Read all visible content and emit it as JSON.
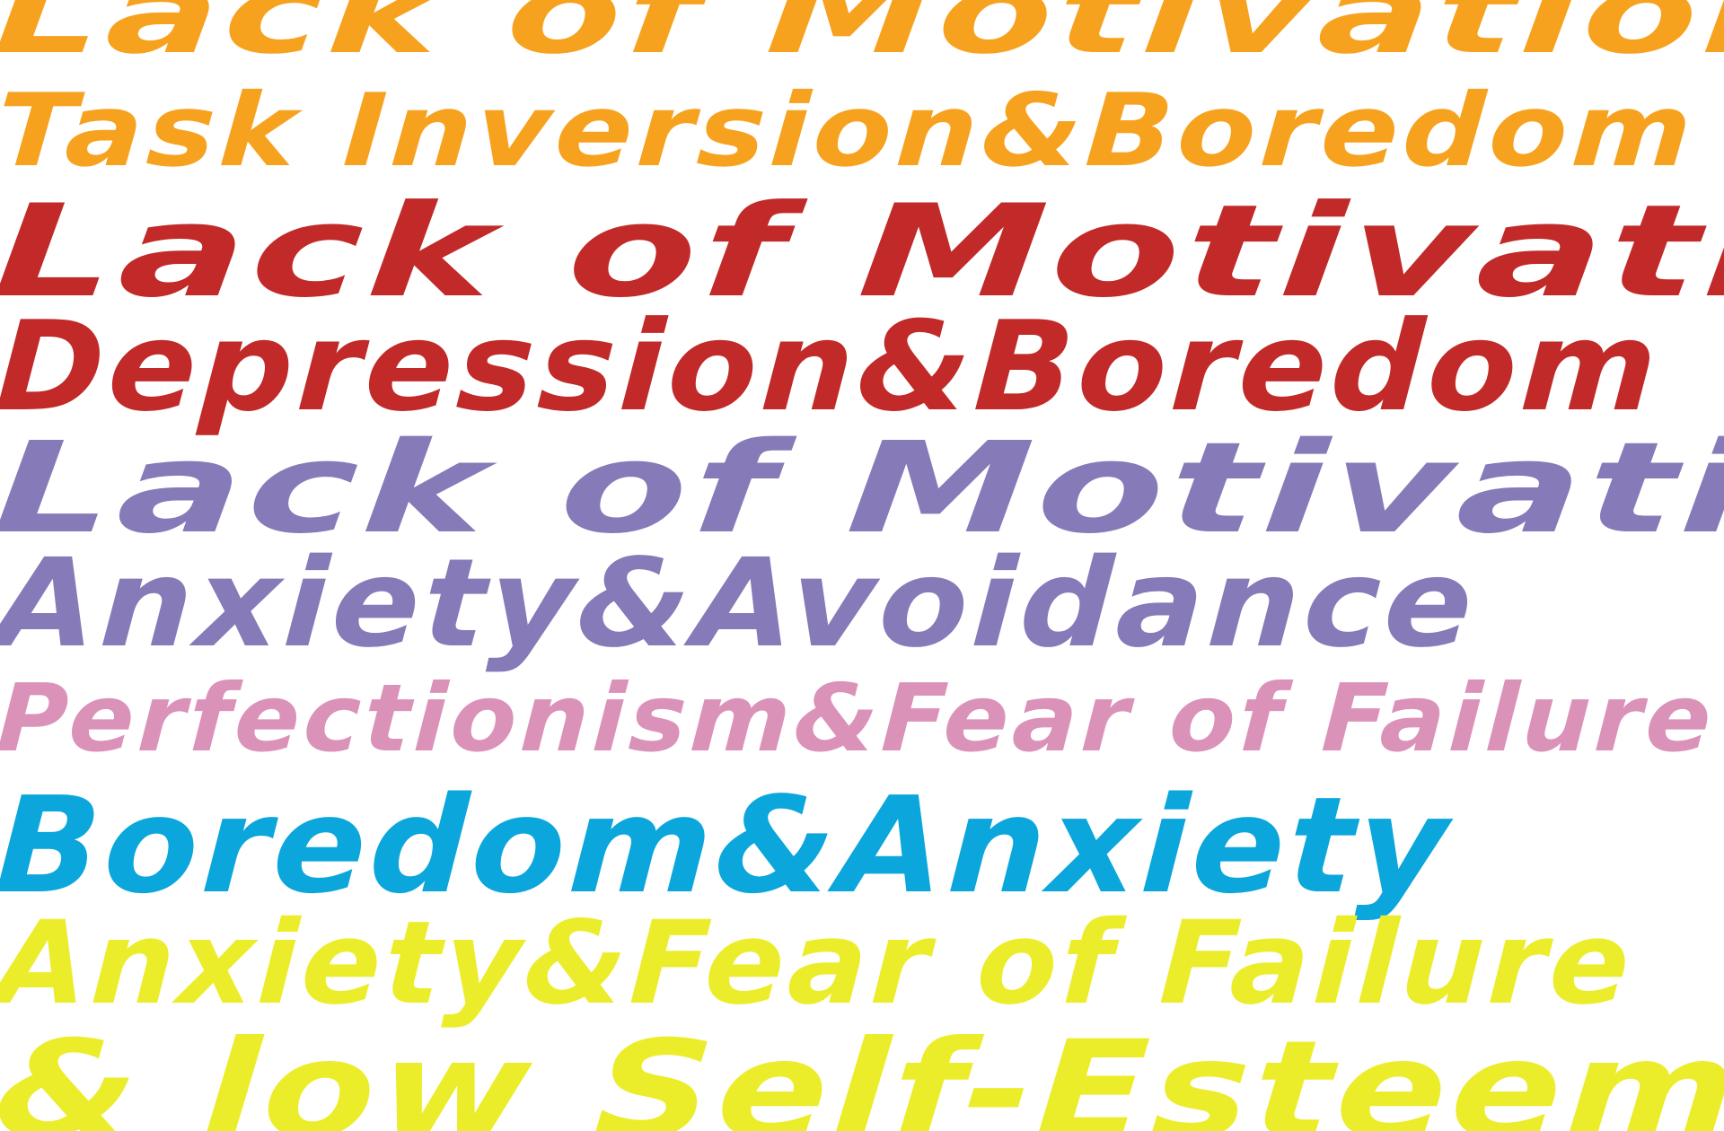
{
  "lines": [
    {
      "text": "Lack of Motivation",
      "color": "#f7a21f"
    },
    {
      "text": "Task Inversion&Boredom",
      "color": "#f7a21f"
    },
    {
      "text": "Lack of Motivation",
      "color": "#c12a28"
    },
    {
      "text": "Depression&Boredom",
      "color": "#c12a28"
    },
    {
      "text": "Lack of Motivation",
      "color": "#877ab8"
    },
    {
      "text": "Anxiety&Avoidance",
      "color": "#877ab8"
    },
    {
      "text": "Perfectionism&Fear of Failure",
      "color": "#db92b9"
    },
    {
      "text": "Boredom&Anxiety",
      "color": "#0aa6dc"
    },
    {
      "text": "Anxiety&Fear of Failure",
      "color": "#eced2a"
    },
    {
      "text": "& low Self-Esteem",
      "color": "#eced2a"
    }
  ]
}
